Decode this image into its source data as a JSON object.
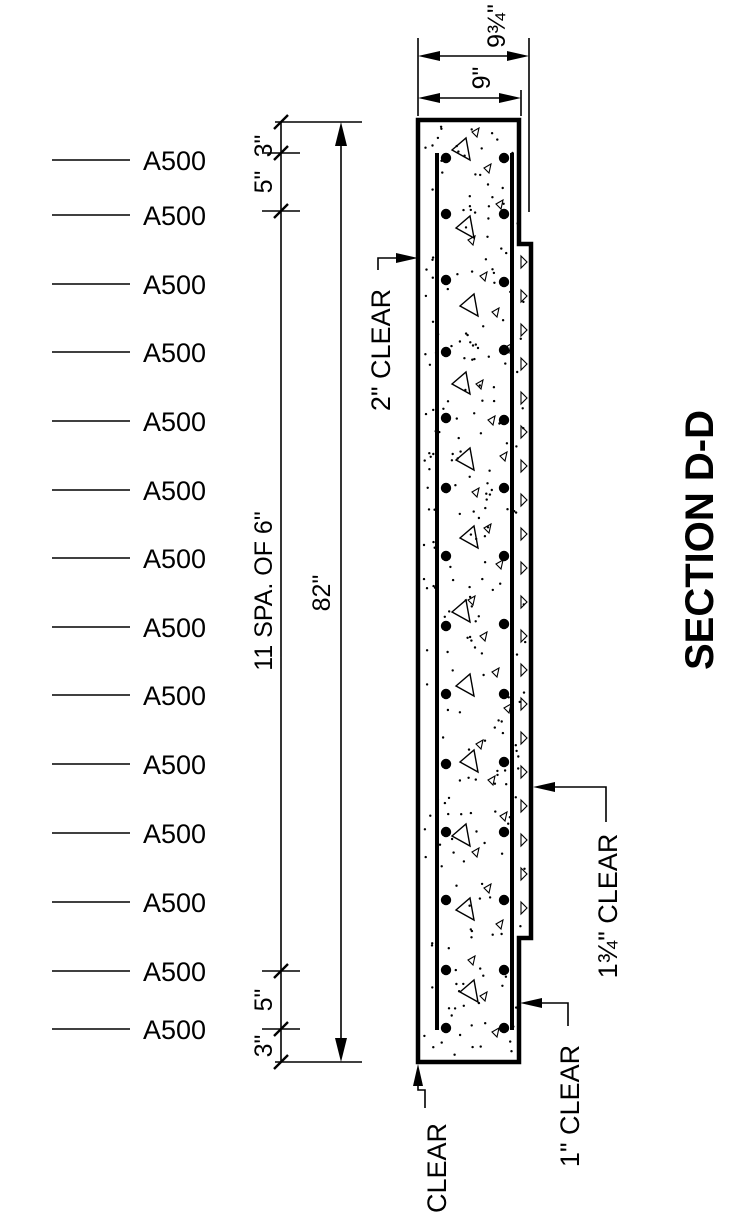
{
  "title": "SECTION D-D",
  "bar_labels": [
    "A500",
    "A500",
    "A500",
    "A500",
    "A500",
    "A500",
    "A500",
    "A500",
    "A500",
    "A500",
    "A500",
    "A500",
    "A500",
    "A500"
  ],
  "dimensions": {
    "top_end_spacing": "3\"",
    "top_second_spacing": "5\"",
    "typical_spacing": "11 SPA. OF 6\"",
    "bottom_second_spacing": "5\"",
    "bottom_end_spacing": "3\"",
    "overall_length": "82\"",
    "thickness_outer": "9¾\"",
    "thickness_inner": "9\""
  },
  "callouts": {
    "inner_face_clear": "2\" CLEAR",
    "outer_recess_clear": "1¾\" CLEAR",
    "outer_end_clear": "1\" CLEAR",
    "bottom_clear": "CLEAR"
  },
  "colors": {
    "line": "#000000",
    "background": "#ffffff"
  }
}
